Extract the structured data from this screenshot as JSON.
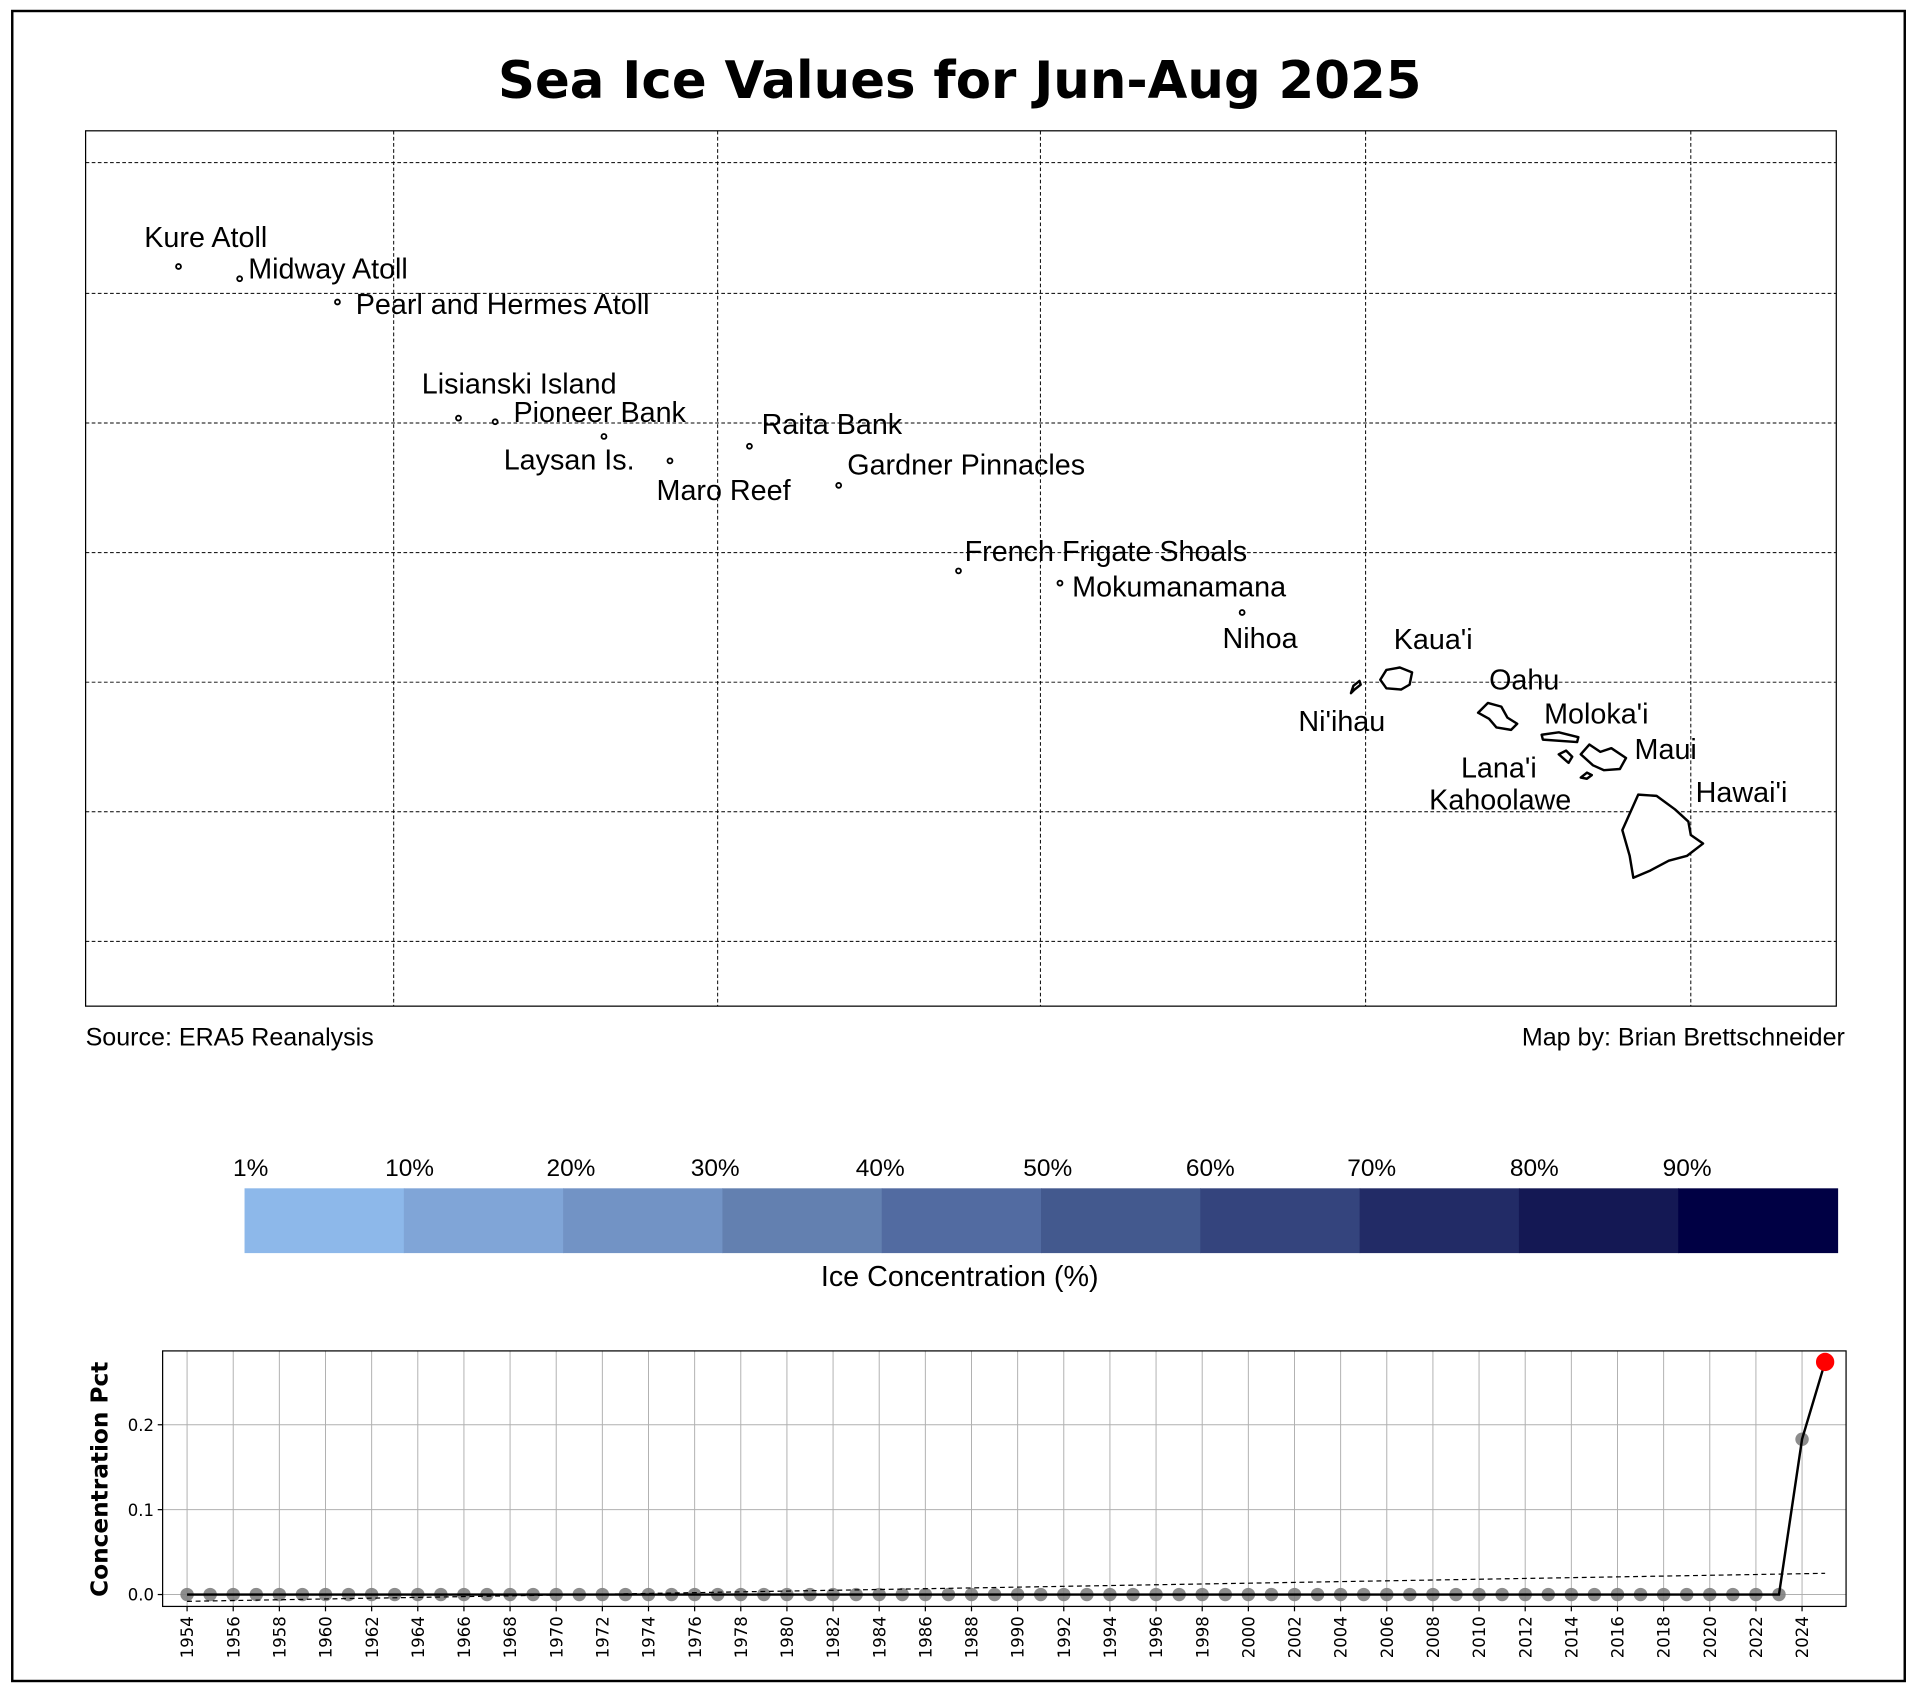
{
  "title": "Sea Ice Values for Jun-Aug 2025",
  "map": {
    "labels": [
      "Kure Atoll",
      "Midway Atoll",
      "Pearl and Hermes Atoll",
      "Lisianski Island",
      "Pioneer Bank",
      "Raita Bank",
      "Laysan Is.",
      "Gardner Pinnacles",
      "Maro Reef",
      "French Frigate Shoals",
      "Mokumanamana",
      "Nihoa",
      "Kaua'i",
      "Ni'ihau",
      "Oahu",
      "Moloka'i",
      "Maui",
      "Lana'i",
      "Kahoolawe",
      "Hawai'i"
    ],
    "source": "Source: ERA5 Reanalysis",
    "credit": "Map by: Brian Brettschneider"
  },
  "colorbar": {
    "label": "Ice Concentration (%)",
    "ticks": [
      "1%",
      "10%",
      "20%",
      "30%",
      "40%",
      "50%",
      "60%",
      "70%",
      "80%",
      "90%"
    ],
    "colors": [
      "#8db8ea",
      "#80a5d7",
      "#7293c5",
      "#6380b0",
      "#526ba1",
      "#43598e",
      "#34447d",
      "#222b66",
      "#141854",
      "#000044"
    ]
  },
  "chart_data": {
    "type": "line",
    "ylabel": "Concentration Pct",
    "xlabel": "",
    "x_start": 1954,
    "x_end": 2025,
    "values": [
      0,
      0,
      0,
      0,
      0,
      0,
      0,
      0,
      0,
      0,
      0,
      0,
      0,
      0,
      0,
      0,
      0,
      0,
      0,
      0,
      0,
      0,
      0,
      0,
      0,
      0,
      0,
      0,
      0,
      0,
      0,
      0,
      0,
      0,
      0,
      0,
      0,
      0,
      0,
      0,
      0,
      0,
      0,
      0,
      0,
      0,
      0,
      0,
      0,
      0,
      0,
      0,
      0,
      0,
      0,
      0,
      0,
      0,
      0,
      0,
      0,
      0,
      0,
      0,
      0,
      0,
      0,
      0,
      0,
      0,
      0.183,
      0.274
    ],
    "trend": {
      "start": -0.008,
      "end": 0.025
    },
    "highlight": {
      "year": 2025,
      "color": "#ff0000"
    },
    "point_color": "#808080",
    "ylim": [
      -0.014,
      0.287
    ],
    "yticks": [
      "0.0",
      "0.1",
      "0.2"
    ],
    "ytick_values": [
      0,
      0.1,
      0.2
    ],
    "xticks_step": 2,
    "grid": true
  }
}
